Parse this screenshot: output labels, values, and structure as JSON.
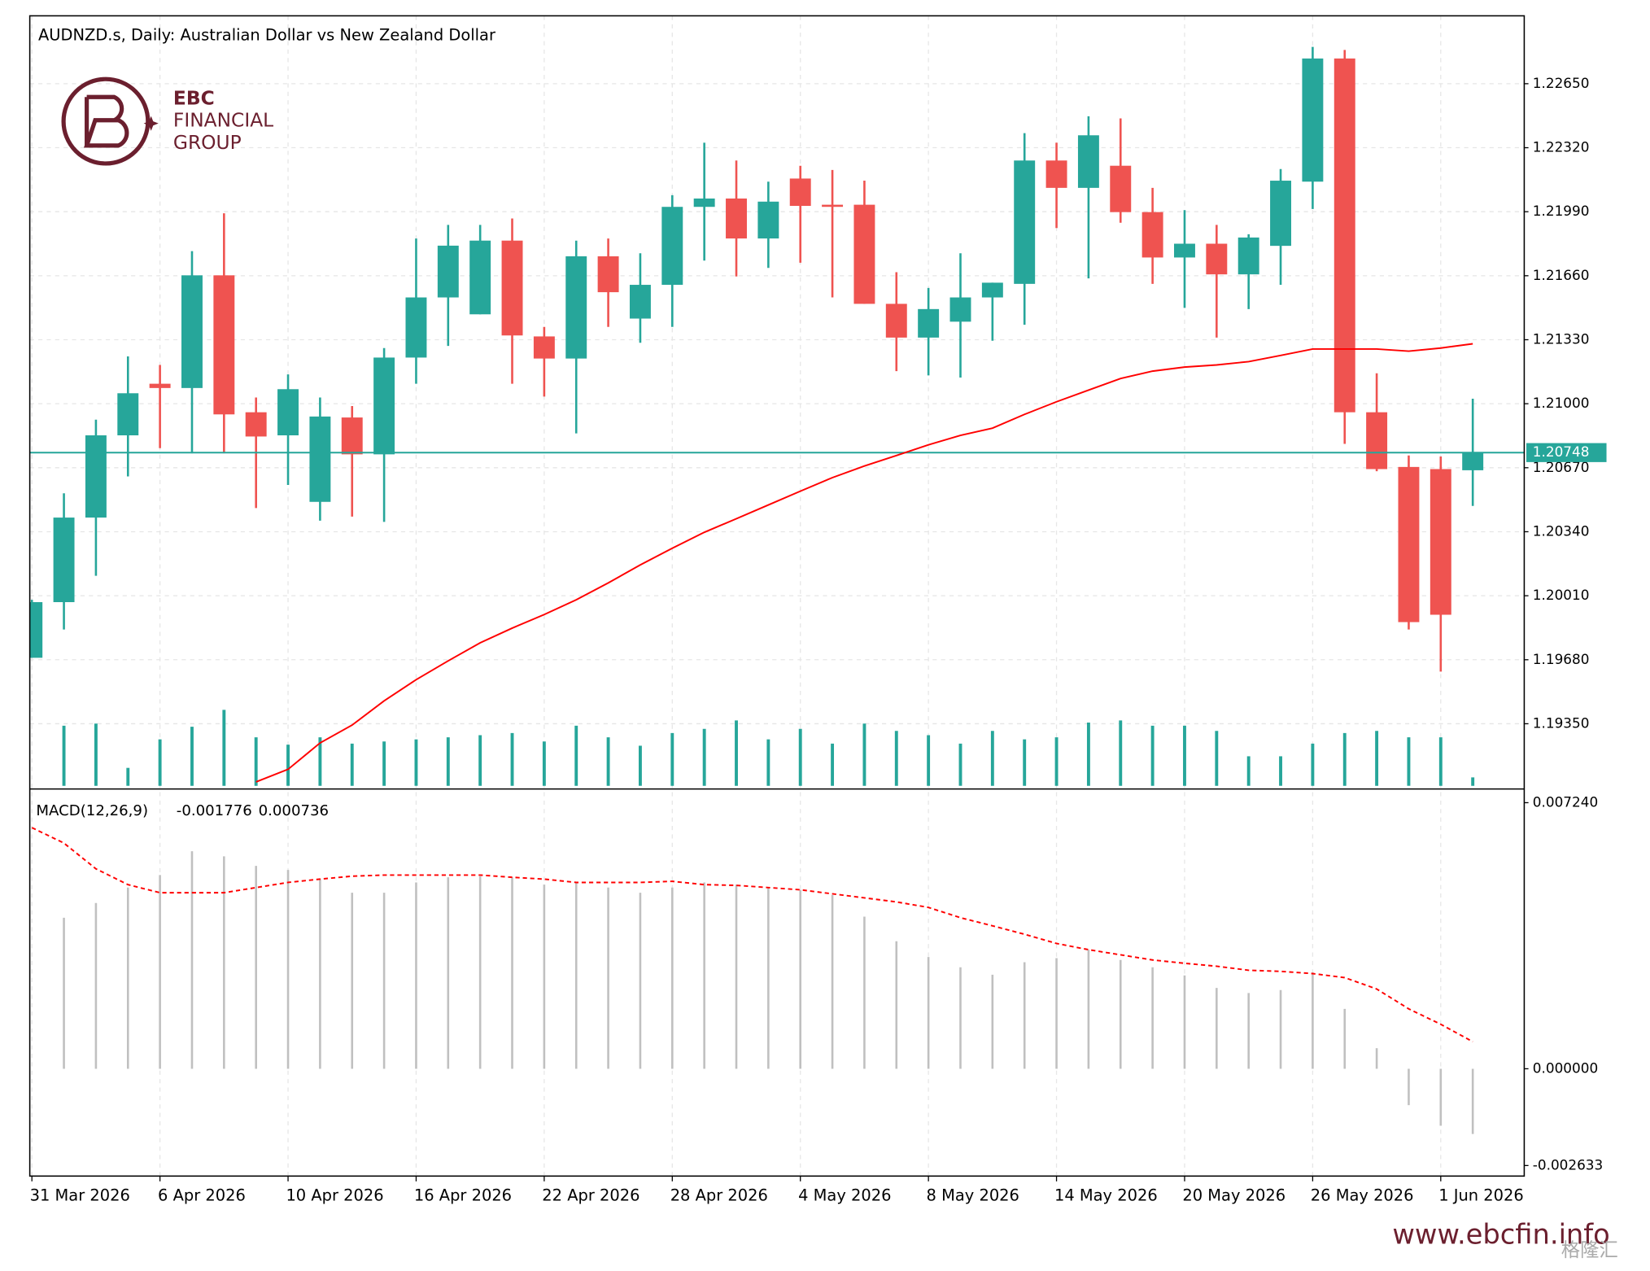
{
  "chart_data": [
    {
      "type": "candlestick",
      "title": "AUDNZD.s, Daily:  Australian Dollar vs New Zealand Dollar",
      "categories": [
        "31 Mar 2026",
        null,
        null,
        null,
        "6 Apr 2026",
        null,
        null,
        null,
        "10 Apr 2026",
        null,
        null,
        null,
        "16 Apr 2026",
        null,
        null,
        null,
        "22 Apr 2026",
        null,
        null,
        null,
        "28 Apr 2026",
        null,
        null,
        null,
        "4 May 2026",
        null,
        null,
        null,
        "8 May 2026",
        null,
        null,
        null,
        "14 May 2026",
        null,
        null,
        null,
        "20 May 2026",
        null,
        null,
        null,
        "26 May 2026",
        null,
        null,
        null,
        "1 Jun 2026",
        null
      ],
      "open": [
        1.1969,
        1.19977,
        1.20413,
        1.20837,
        1.21103,
        1.21081,
        1.21662,
        1.20956,
        1.20837,
        1.20494,
        1.20929,
        1.20739,
        1.21238,
        1.21548,
        1.21461,
        1.21841,
        1.21347,
        1.21233,
        1.2176,
        1.21439,
        1.21613,
        1.22015,
        1.22058,
        1.21852,
        1.22161,
        1.22026,
        1.22026,
        1.21515,
        1.21341,
        1.21423,
        1.21548,
        1.21618,
        1.22254,
        1.22113,
        1.22227,
        1.21988,
        1.21754,
        1.21825,
        1.21667,
        1.21814,
        1.22145,
        1.2278,
        1.20956,
        1.20674,
        1.20663,
        1.20657
      ],
      "high": [
        1.19989,
        1.20538,
        1.20918,
        1.21244,
        1.212,
        1.21787,
        1.21982,
        1.21032,
        1.21151,
        1.21032,
        1.20988,
        1.21287,
        1.21852,
        1.21922,
        1.21922,
        1.21955,
        1.21396,
        1.21841,
        1.21852,
        1.21776,
        1.22075,
        1.22346,
        1.22254,
        1.22145,
        1.22227,
        1.22205,
        1.2215,
        1.21678,
        1.21597,
        1.21776,
        1.21624,
        1.22395,
        1.22346,
        1.22482,
        1.22471,
        1.22113,
        1.21998,
        1.21922,
        1.21874,
        1.2221,
        1.2284,
        1.22824,
        1.21157,
        1.20733,
        1.20728,
        1.21026
      ],
      "low": [
        1.1969,
        1.19836,
        1.20113,
        1.20625,
        1.20771,
        1.20744,
        1.20744,
        1.20462,
        1.20581,
        1.20397,
        1.20418,
        1.20391,
        1.21103,
        1.21298,
        1.21461,
        1.21103,
        1.21037,
        1.20847,
        1.21396,
        1.21314,
        1.21396,
        1.21738,
        1.21656,
        1.217,
        1.21727,
        1.21548,
        1.21515,
        1.21168,
        1.21146,
        1.21135,
        1.21325,
        1.21407,
        1.21906,
        1.21646,
        1.21933,
        1.21618,
        1.21494,
        1.21341,
        1.21488,
        1.21613,
        1.22004,
        1.20793,
        1.20652,
        1.19836,
        1.19619,
        1.20473
      ],
      "close": [
        1.19977,
        1.20413,
        1.20837,
        1.21054,
        1.21081,
        1.21662,
        1.20945,
        1.20831,
        1.21075,
        1.20934,
        1.20739,
        1.21238,
        1.21548,
        1.21815,
        1.21841,
        1.21352,
        1.21233,
        1.2176,
        1.21575,
        1.21613,
        1.22015,
        1.22058,
        1.21852,
        1.22042,
        1.2202,
        1.2202,
        1.21515,
        1.21341,
        1.21488,
        1.21548,
        1.21624,
        1.22254,
        1.22113,
        1.22384,
        1.21988,
        1.21754,
        1.21825,
        1.21667,
        1.21857,
        1.2215,
        1.2278,
        1.20956,
        1.20663,
        1.19874,
        1.19912,
        1.20748
      ],
      "up_color": "#26a69a",
      "down_color": "#ef5350",
      "series": [
        {
          "color": "#ff0000",
          "values": [
            null,
            null,
            null,
            null,
            null,
            null,
            null,
            1.1905,
            1.19115,
            1.19251,
            1.19343,
            1.19468,
            1.19577,
            1.19674,
            1.19767,
            1.19843,
            1.19913,
            1.19989,
            1.20076,
            1.20169,
            1.20255,
            1.20337,
            1.20407,
            1.20478,
            1.20549,
            1.20619,
            1.20679,
            1.20733,
            1.20788,
            1.20837,
            1.20874,
            1.20945,
            1.2101,
            1.2107,
            1.2113,
            1.21168,
            1.21189,
            1.212,
            1.21217,
            1.21249,
            1.21282,
            1.21282,
            1.21282,
            1.21271,
            1.21287,
            1.21309
          ]
        }
      ],
      "volume": [
        null,
        57,
        59,
        17,
        44,
        56,
        72,
        46,
        39,
        46,
        40,
        42,
        44,
        46,
        48,
        50,
        42,
        57,
        46,
        38,
        50,
        54,
        62,
        44,
        54,
        40,
        59,
        52,
        48,
        40,
        52,
        44,
        46,
        60,
        62,
        57,
        57,
        52,
        28,
        28,
        40,
        50,
        52,
        46,
        46,
        8
      ],
      "volume_color": "#26a69a",
      "current_price": 1.20748,
      "ylim": [
        1.1903,
        1.23
      ],
      "yticks": [
        {
          "value": 1.2265,
          "label": "1.22650"
        },
        {
          "value": 1.2232,
          "label": "1.22320"
        },
        {
          "value": 1.2199,
          "label": "1.21990"
        },
        {
          "value": 1.2166,
          "label": "1.21660"
        },
        {
          "value": 1.2133,
          "label": "1.21330"
        },
        {
          "value": 1.21,
          "label": "1.21000"
        },
        {
          "value": 1.2067,
          "label": "1.20670"
        },
        {
          "value": 1.2034,
          "label": "1.20340"
        },
        {
          "value": 1.2001,
          "label": "1.20010"
        },
        {
          "value": 1.1968,
          "label": "1.19680"
        },
        {
          "value": 1.1935,
          "label": "1.19350"
        }
      ],
      "grid": true
    },
    {
      "type": "macd",
      "label": "MACD(12,26,9)",
      "series": [
        {
          "color": "#c0c0c0",
          "style": "histogram",
          "values": [
            null,
            0.00411,
            0.00451,
            0.00493,
            0.00527,
            0.00592,
            0.00578,
            0.00552,
            0.00541,
            0.00516,
            0.00479,
            0.00479,
            0.00507,
            0.00521,
            0.00524,
            0.00521,
            0.00501,
            0.00507,
            0.00493,
            0.00479,
            0.00493,
            0.00507,
            0.00501,
            0.00493,
            0.00487,
            0.00473,
            0.00414,
            0.00347,
            0.00304,
            0.00276,
            0.00256,
            0.0029,
            0.00301,
            0.00324,
            0.00296,
            0.00276,
            0.00254,
            0.0022,
            0.00206,
            0.00214,
            0.00262,
            0.00163,
            0.00056,
            -0.00099,
            -0.00155,
            -0.001776
          ]
        },
        {
          "color": "#ff0000",
          "style": "dashed",
          "values": [
            0.00656,
            0.00614,
            0.00544,
            0.00501,
            0.00479,
            0.00479,
            0.00479,
            0.00493,
            0.00507,
            0.00516,
            0.00524,
            0.00527,
            0.00527,
            0.00527,
            0.00527,
            0.00521,
            0.00516,
            0.00507,
            0.00507,
            0.00507,
            0.0051,
            0.00501,
            0.00499,
            0.00493,
            0.00487,
            0.00476,
            0.00465,
            0.00454,
            0.00439,
            0.00411,
            0.00389,
            0.00366,
            0.00341,
            0.00324,
            0.0031,
            0.00296,
            0.00287,
            0.00279,
            0.00268,
            0.00265,
            0.00259,
            0.00248,
            0.00217,
            0.00163,
            0.00121,
            0.000736
          ]
        }
      ],
      "ylim": [
        -0.002633,
        0.00724
      ],
      "yticks": [
        {
          "value": 0.00724,
          "label": "0.007240"
        },
        {
          "value": 0,
          "label": "0.000000"
        },
        -0.002633
      ],
      "grid": true
    }
  ],
  "logo": {
    "line1": "EBC",
    "line2": "FINANCIAL",
    "line3": "GROUP"
  },
  "footer": {
    "url": "www.ebcfin.info",
    "watermark": "格隆汇"
  }
}
